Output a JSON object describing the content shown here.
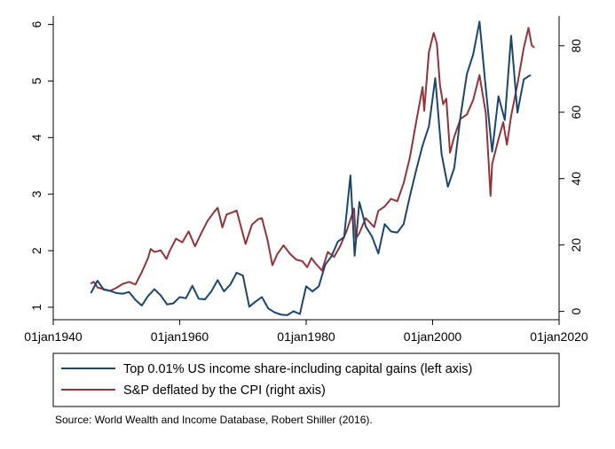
{
  "chart_data": {
    "type": "line",
    "title": "",
    "xlabel": "",
    "ylabel_left": "",
    "ylabel_right": "",
    "x_axis": {
      "type": "date",
      "range": [
        "1940-01-01",
        "2020-01-01"
      ],
      "ticks": [
        {
          "value": "1940-01-01",
          "label": "01jan1940"
        },
        {
          "value": "1960-01-01",
          "label": "01jan1960"
        },
        {
          "value": "1980-01-01",
          "label": "01jan1980"
        },
        {
          "value": "2000-01-01",
          "label": "01jan2000"
        },
        {
          "value": "2020-01-01",
          "label": "01jan2020"
        }
      ]
    },
    "y_left": {
      "range": [
        0.78,
        6.15
      ],
      "ticks": [
        {
          "value": 1,
          "label": "1"
        },
        {
          "value": 2,
          "label": "2"
        },
        {
          "value": 3,
          "label": "3"
        },
        {
          "value": 4,
          "label": "4"
        },
        {
          "value": 5,
          "label": "5"
        },
        {
          "value": 6,
          "label": "6"
        }
      ]
    },
    "y_right": {
      "range": [
        -2.5,
        89
      ],
      "ticks": [
        {
          "value": 0,
          "label": "0"
        },
        {
          "value": 20,
          "label": "20"
        },
        {
          "value": 40,
          "label": "40"
        },
        {
          "value": 60,
          "label": "60"
        },
        {
          "value": 80,
          "label": "80"
        }
      ]
    },
    "grid": false,
    "legend_position": "bottom",
    "series": [
      {
        "name": "Top 0.01% US income share-including capital gains (left axis)",
        "axis": "left",
        "color": "#1a476f",
        "points": [
          [
            "1946-01-01",
            1.26
          ],
          [
            "1947-01-01",
            1.47
          ],
          [
            "1948-01-01",
            1.31
          ],
          [
            "1949-01-01",
            1.29
          ],
          [
            "1950-01-01",
            1.25
          ],
          [
            "1951-01-01",
            1.24
          ],
          [
            "1952-01-01",
            1.27
          ],
          [
            "1953-01-01",
            1.13
          ],
          [
            "1954-01-01",
            1.03
          ],
          [
            "1955-01-01",
            1.2
          ],
          [
            "1956-01-01",
            1.32
          ],
          [
            "1957-01-01",
            1.21
          ],
          [
            "1958-01-01",
            1.05
          ],
          [
            "1959-01-01",
            1.07
          ],
          [
            "1960-01-01",
            1.18
          ],
          [
            "1961-01-01",
            1.16
          ],
          [
            "1962-01-01",
            1.38
          ],
          [
            "1963-01-01",
            1.15
          ],
          [
            "1964-01-01",
            1.14
          ],
          [
            "1965-01-01",
            1.28
          ],
          [
            "1966-01-01",
            1.48
          ],
          [
            "1967-01-01",
            1.28
          ],
          [
            "1968-01-01",
            1.4
          ],
          [
            "1969-01-01",
            1.61
          ],
          [
            "1970-01-01",
            1.56
          ],
          [
            "1971-01-01",
            1.01
          ],
          [
            "1972-01-01",
            1.1
          ],
          [
            "1973-01-01",
            1.18
          ],
          [
            "1974-01-01",
            0.98
          ],
          [
            "1975-01-01",
            0.91
          ],
          [
            "1976-01-01",
            0.87
          ],
          [
            "1977-01-01",
            0.86
          ],
          [
            "1978-01-01",
            0.93
          ],
          [
            "1979-01-01",
            0.88
          ],
          [
            "1980-01-01",
            1.37
          ],
          [
            "1981-01-01",
            1.28
          ],
          [
            "1982-01-01",
            1.37
          ],
          [
            "1983-01-01",
            1.75
          ],
          [
            "1984-01-01",
            1.9
          ],
          [
            "1985-01-01",
            2.16
          ],
          [
            "1986-01-01",
            2.24
          ],
          [
            "1987-01-01",
            3.33
          ],
          [
            "1987-09-01",
            1.91
          ],
          [
            "1988-06-01",
            2.86
          ],
          [
            "1989-06-01",
            2.43
          ],
          [
            "1990-06-01",
            2.25
          ],
          [
            "1991-06-01",
            1.95
          ],
          [
            "1992-06-01",
            2.47
          ],
          [
            "1993-06-01",
            2.34
          ],
          [
            "1994-06-01",
            2.32
          ],
          [
            "1995-06-01",
            2.47
          ],
          [
            "1996-06-01",
            2.97
          ],
          [
            "1997-06-01",
            3.43
          ],
          [
            "1998-06-01",
            3.86
          ],
          [
            "1999-06-01",
            4.2
          ],
          [
            "2000-06-01",
            5.05
          ],
          [
            "2001-06-01",
            3.71
          ],
          [
            "2002-06-01",
            3.13
          ],
          [
            "2003-06-01",
            3.46
          ],
          [
            "2004-06-01",
            4.38
          ],
          [
            "2005-06-01",
            5.12
          ],
          [
            "2006-06-01",
            5.47
          ],
          [
            "2007-06-01",
            6.05
          ],
          [
            "2008-06-01",
            4.86
          ],
          [
            "2009-06-01",
            3.75
          ],
          [
            "2010-06-01",
            4.73
          ],
          [
            "2011-06-01",
            4.31
          ],
          [
            "2012-06-01",
            5.8
          ],
          [
            "2013-06-01",
            4.44
          ],
          [
            "2014-06-01",
            5.03
          ],
          [
            "2015-06-01",
            5.1
          ]
        ]
      },
      {
        "name": "S&P deflated by the CPI (right axis)",
        "axis": "right",
        "color": "#90353b",
        "points": [
          [
            "1946-01-01",
            8.5
          ],
          [
            "1946-06-01",
            8.9
          ],
          [
            "1947-01-01",
            7.2
          ],
          [
            "1948-01-01",
            6.7
          ],
          [
            "1949-01-01",
            6.2
          ],
          [
            "1950-01-01",
            7.1
          ],
          [
            "1951-01-01",
            8.3
          ],
          [
            "1952-01-01",
            8.9
          ],
          [
            "1953-01-01",
            8.1
          ],
          [
            "1954-01-01",
            11.8
          ],
          [
            "1955-01-01",
            16.1
          ],
          [
            "1955-06-01",
            18.8
          ],
          [
            "1956-01-01",
            17.9
          ],
          [
            "1957-01-01",
            18.4
          ],
          [
            "1957-12-01",
            15.8
          ],
          [
            "1958-06-01",
            18.2
          ],
          [
            "1959-06-01",
            21.9
          ],
          [
            "1960-06-01",
            20.8
          ],
          [
            "1961-06-01",
            24.1
          ],
          [
            "1962-06-01",
            19.6
          ],
          [
            "1963-06-01",
            23.6
          ],
          [
            "1964-06-01",
            27.3
          ],
          [
            "1965-06-01",
            29.9
          ],
          [
            "1966-01-01",
            31.2
          ],
          [
            "1966-10-01",
            25.3
          ],
          [
            "1967-06-01",
            29.2
          ],
          [
            "1968-06-01",
            29.9
          ],
          [
            "1969-01-01",
            30.4
          ],
          [
            "1970-06-01",
            20.3
          ],
          [
            "1971-06-01",
            26.1
          ],
          [
            "1972-06-01",
            27.8
          ],
          [
            "1973-01-01",
            28.1
          ],
          [
            "1973-12-01",
            21.3
          ],
          [
            "1974-09-01",
            13.9
          ],
          [
            "1975-06-01",
            17.2
          ],
          [
            "1976-06-01",
            19.9
          ],
          [
            "1977-06-01",
            17.4
          ],
          [
            "1978-06-01",
            15.6
          ],
          [
            "1979-06-01",
            15.1
          ],
          [
            "1980-03-01",
            13.3
          ],
          [
            "1980-11-01",
            16.1
          ],
          [
            "1981-06-01",
            14.6
          ],
          [
            "1982-07-01",
            12.3
          ],
          [
            "1983-06-01",
            17.9
          ],
          [
            "1984-06-01",
            16.4
          ],
          [
            "1985-06-01",
            19.8
          ],
          [
            "1986-06-01",
            24.3
          ],
          [
            "1987-08-01",
            31.0
          ],
          [
            "1987-11-01",
            21.9
          ],
          [
            "1988-06-01",
            23.6
          ],
          [
            "1989-06-01",
            28.1
          ],
          [
            "1990-10-01",
            25.4
          ],
          [
            "1991-06-01",
            30.3
          ],
          [
            "1992-06-01",
            31.6
          ],
          [
            "1993-06-01",
            33.9
          ],
          [
            "1994-06-01",
            33.2
          ],
          [
            "1995-06-01",
            38.6
          ],
          [
            "1996-06-01",
            46.5
          ],
          [
            "1997-06-01",
            57.2
          ],
          [
            "1998-06-01",
            67.6
          ],
          [
            "1998-09-01",
            60.4
          ],
          [
            "1999-06-01",
            78.1
          ],
          [
            "2000-03-01",
            83.9
          ],
          [
            "2000-09-01",
            80.7
          ],
          [
            "2001-03-01",
            68.1
          ],
          [
            "2001-09-01",
            62.4
          ],
          [
            "2002-03-01",
            64.1
          ],
          [
            "2002-10-01",
            47.8
          ],
          [
            "2003-06-01",
            52.6
          ],
          [
            "2004-06-01",
            58.0
          ],
          [
            "2005-06-01",
            59.3
          ],
          [
            "2006-06-01",
            63.7
          ],
          [
            "2007-06-01",
            71.2
          ],
          [
            "2008-06-01",
            59.6
          ],
          [
            "2009-03-01",
            34.8
          ],
          [
            "2009-06-01",
            44.4
          ],
          [
            "2010-06-01",
            51.9
          ],
          [
            "2011-03-01",
            57.0
          ],
          [
            "2011-10-01",
            50.2
          ],
          [
            "2012-06-01",
            58.9
          ],
          [
            "2013-06-01",
            68.4
          ],
          [
            "2014-06-01",
            79.4
          ],
          [
            "2015-03-01",
            85.4
          ],
          [
            "2015-09-01",
            80.2
          ],
          [
            "2016-01-01",
            79.6
          ]
        ]
      }
    ]
  },
  "legend": {
    "items": [
      {
        "label": "Top 0.01% US income share-including capital gains (left axis)",
        "color": "#1a476f"
      },
      {
        "label": "S&P deflated by the CPI (right axis)",
        "color": "#90353b"
      }
    ]
  },
  "source_note": "Source: World Wealth and Income Database, Robert Shiller (2016)."
}
